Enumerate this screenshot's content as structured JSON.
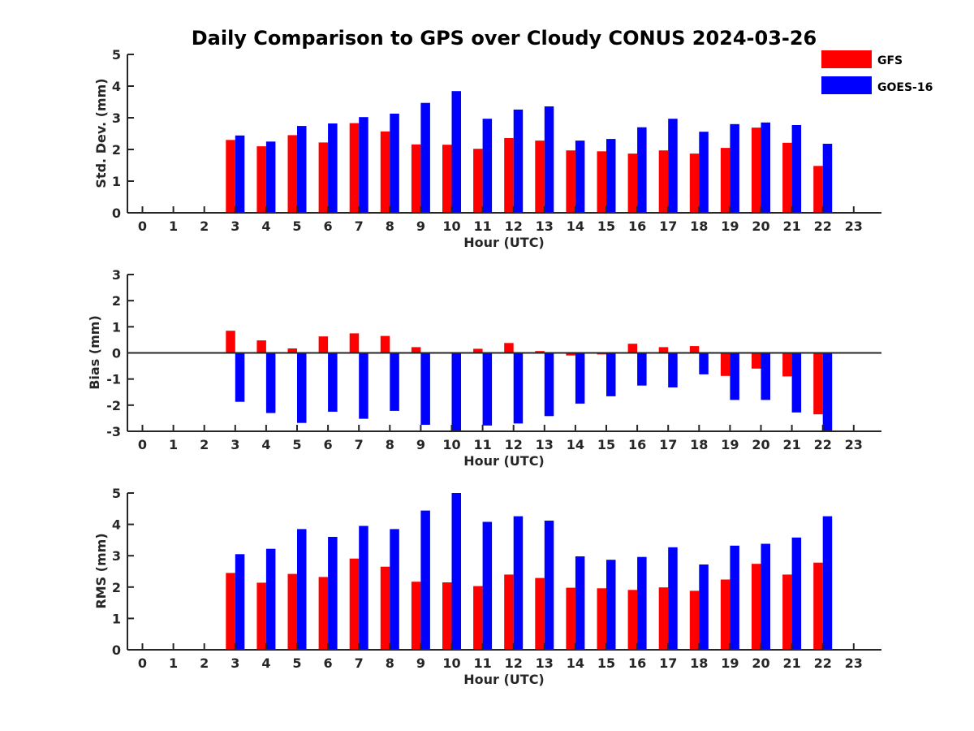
{
  "title": "Daily Comparison to GPS over Cloudy CONUS 2024-03-26",
  "legend": [
    {
      "name": "GFS",
      "color": "#ff0000"
    },
    {
      "name": "GOES-16",
      "color": "#0000ff"
    }
  ],
  "chart_data": [
    {
      "type": "bar",
      "ylabel": "Std. Dev. (mm)",
      "xlabel": "Hour (UTC)",
      "ylim": [
        0,
        5
      ],
      "yticks": [
        "0",
        "1",
        "2",
        "3",
        "4",
        "5"
      ],
      "categories": [
        "0",
        "1",
        "2",
        "3",
        "4",
        "5",
        "6",
        "7",
        "8",
        "9",
        "10",
        "11",
        "12",
        "13",
        "14",
        "15",
        "16",
        "17",
        "18",
        "19",
        "20",
        "21",
        "22",
        "23"
      ],
      "series": [
        {
          "name": "GFS",
          "color": "#ff0000",
          "values": [
            null,
            null,
            null,
            2.3,
            2.1,
            2.45,
            2.22,
            2.83,
            2.57,
            2.16,
            2.15,
            2.02,
            2.36,
            2.28,
            1.97,
            1.94,
            1.87,
            1.97,
            1.87,
            2.05,
            2.69,
            2.21,
            1.48,
            null
          ]
        },
        {
          "name": "GOES-16",
          "color": "#0000ff",
          "values": [
            null,
            null,
            null,
            2.44,
            2.25,
            2.74,
            2.82,
            3.02,
            3.13,
            3.47,
            3.84,
            2.97,
            3.26,
            3.36,
            2.28,
            2.33,
            2.7,
            2.97,
            2.56,
            2.8,
            2.85,
            2.77,
            2.18,
            null
          ]
        }
      ]
    },
    {
      "type": "bar",
      "ylabel": "Bias (mm)",
      "xlabel": "Hour (UTC)",
      "ylim": [
        -3,
        3
      ],
      "yticks": [
        "-3",
        "-2",
        "-1",
        "0",
        "1",
        "2",
        "3"
      ],
      "categories": [
        "0",
        "1",
        "2",
        "3",
        "4",
        "5",
        "6",
        "7",
        "8",
        "9",
        "10",
        "11",
        "12",
        "13",
        "14",
        "15",
        "16",
        "17",
        "18",
        "19",
        "20",
        "21",
        "22",
        "23"
      ],
      "series": [
        {
          "name": "GFS",
          "color": "#ff0000",
          "values": [
            null,
            null,
            null,
            0.85,
            0.48,
            0.17,
            0.63,
            0.75,
            0.65,
            0.22,
            0.0,
            0.16,
            0.38,
            0.07,
            -0.1,
            -0.06,
            0.35,
            0.22,
            0.26,
            -0.88,
            -0.6,
            -0.9,
            -2.35,
            null
          ]
        },
        {
          "name": "GOES-16",
          "color": "#0000ff",
          "values": [
            null,
            null,
            null,
            -1.87,
            -2.3,
            -2.68,
            -2.25,
            -2.52,
            -2.22,
            -2.75,
            -3.0,
            -2.78,
            -2.7,
            -2.42,
            -1.94,
            -1.66,
            -1.25,
            -1.32,
            -0.82,
            -1.8,
            -1.8,
            -2.28,
            -3.0,
            null
          ]
        }
      ]
    },
    {
      "type": "bar",
      "ylabel": "RMS (mm)",
      "xlabel": "Hour (UTC)",
      "ylim": [
        0,
        5
      ],
      "yticks": [
        "0",
        "1",
        "2",
        "3",
        "4",
        "5"
      ],
      "categories": [
        "0",
        "1",
        "2",
        "3",
        "4",
        "5",
        "6",
        "7",
        "8",
        "9",
        "10",
        "11",
        "12",
        "13",
        "14",
        "15",
        "16",
        "17",
        "18",
        "19",
        "20",
        "21",
        "22",
        "23"
      ],
      "series": [
        {
          "name": "GFS",
          "color": "#ff0000",
          "values": [
            null,
            null,
            null,
            2.45,
            2.14,
            2.42,
            2.32,
            2.91,
            2.65,
            2.17,
            2.15,
            2.03,
            2.4,
            2.29,
            1.98,
            1.96,
            1.91,
            1.99,
            1.88,
            2.24,
            2.74,
            2.4,
            2.78,
            null
          ]
        },
        {
          "name": "GOES-16",
          "color": "#0000ff",
          "values": [
            null,
            null,
            null,
            3.05,
            3.22,
            3.85,
            3.6,
            3.95,
            3.85,
            4.44,
            5.0,
            4.08,
            4.26,
            4.12,
            2.98,
            2.87,
            2.96,
            3.27,
            2.72,
            3.32,
            3.38,
            3.58,
            4.26,
            null
          ]
        }
      ]
    }
  ]
}
